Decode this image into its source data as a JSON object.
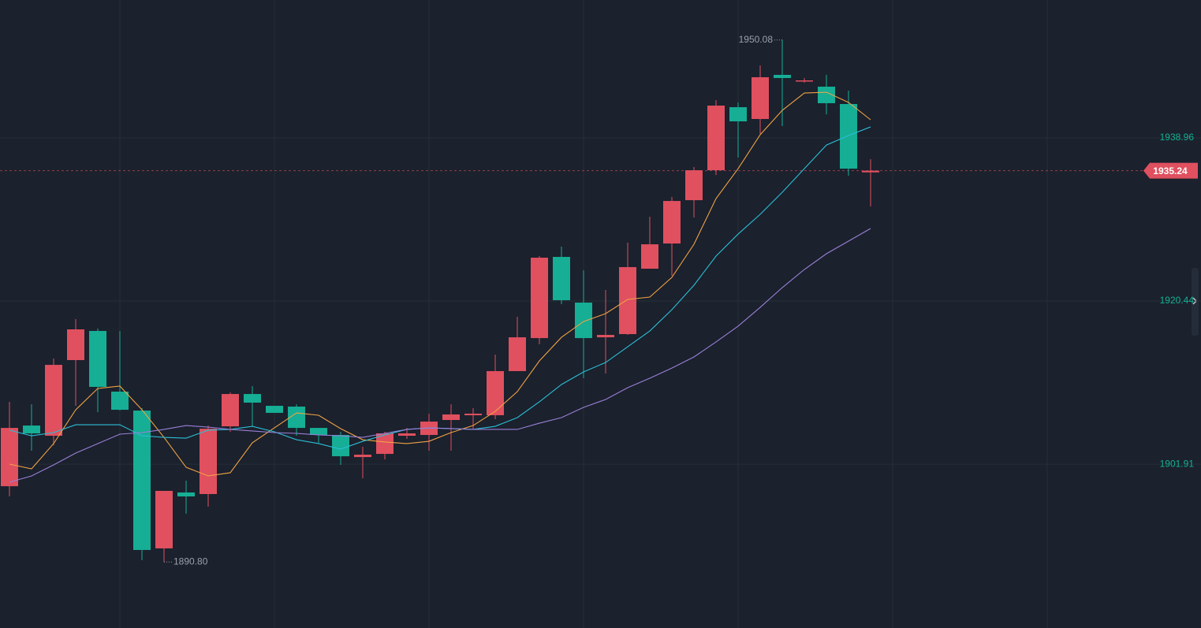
{
  "chart_data": {
    "type": "candlestick",
    "open": [
      1899.41,
      1906.3,
      1905.14,
      1913.73,
      1917.04,
      1910.15,
      1908.0,
      1892.35,
      1898.7,
      1898.52,
      1906.21,
      1909.88,
      1908.54,
      1908.45,
      1906.03,
      1905.23,
      1902.72,
      1903.08,
      1905.14,
      1905.23,
      1906.93,
      1907.47,
      1907.47,
      1912.48,
      1916.23,
      1925.45,
      1920.26,
      1916.32,
      1916.68,
      1924.11,
      1926.97,
      1931.89,
      1935.29,
      1942.45,
      1941.11,
      1946.12,
      1945.4,
      1944.78,
      1942.81,
      1935.05
    ],
    "high": [
      1908.99,
      1908.72,
      1913.91,
      1918.38,
      1917.31,
      1917.04,
      1908.27,
      1898.88,
      1900.04,
      1906.3,
      1910.06,
      1910.78,
      1908.54,
      1908.72,
      1906.03,
      1905.59,
      1903.89,
      1905.59,
      1906.03,
      1907.65,
      1908.72,
      1908.27,
      1914.36,
      1918.65,
      1925.54,
      1926.61,
      1923.93,
      1921.69,
      1927.06,
      1930.01,
      1932.25,
      1935.65,
      1943.25,
      1942.99,
      1947.19,
      1950.08,
      1945.76,
      1946.12,
      1944.33,
      1936.54
    ],
    "low": [
      1898.25,
      1903.44,
      1904.07,
      1908.54,
      1907.82,
      1908.0,
      1891.0,
      1890.8,
      1896.28,
      1897.09,
      1905.59,
      1906.21,
      1907.74,
      1905.14,
      1904.34,
      1901.83,
      1900.31,
      1902.45,
      1904.78,
      1903.44,
      1903.44,
      1905.85,
      1907.02,
      1912.48,
      1915.52,
      1920.08,
      1911.67,
      1912.21,
      1916.59,
      1924.11,
      1923.3,
      1929.92,
      1934.75,
      1936.72,
      1939.41,
      1940.3,
      1945.22,
      1941.64,
      1934.67,
      1931.18
    ],
    "close": [
      1906.03,
      1905.41,
      1913.19,
      1917.22,
      1910.69,
      1908.09,
      1892.17,
      1898.88,
      1898.25,
      1905.94,
      1909.88,
      1908.9,
      1907.74,
      1906.03,
      1905.23,
      1902.81,
      1902.99,
      1905.41,
      1905.41,
      1906.75,
      1907.56,
      1907.65,
      1912.48,
      1916.32,
      1925.36,
      1920.53,
      1916.23,
      1916.59,
      1924.29,
      1926.88,
      1931.8,
      1935.29,
      1942.63,
      1940.84,
      1945.85,
      1945.76,
      1945.49,
      1942.9,
      1935.47,
      1935.24
    ],
    "up_color": "#e0505f",
    "down_color": "#16ae95",
    "moving_averages": [
      {
        "color": "#f0a244",
        "values": [
          1901.92,
          1901.38,
          1904.25,
          1908.09,
          1910.51,
          1910.78,
          1908.09,
          1904.96,
          1901.56,
          1900.58,
          1900.94,
          1904.34,
          1906.04,
          1907.73,
          1907.47,
          1905.95,
          1904.69,
          1904.43,
          1904.25,
          1904.51,
          1905.5,
          1906.3,
          1907.91,
          1910.15,
          1913.64,
          1916.32,
          1918.11,
          1919.01,
          1920.62,
          1920.89,
          1923.12,
          1926.88,
          1932.07,
          1935.47,
          1939.32,
          1942.09,
          1944.06,
          1944.15,
          1942.99,
          1941.02
        ]
      },
      {
        "color": "#2bbfd6",
        "values": [
          1905.77,
          1905.14,
          1905.5,
          1906.39,
          1906.39,
          1906.39,
          1905.14,
          1904.96,
          1904.87,
          1905.77,
          1905.86,
          1906.21,
          1905.59,
          1904.69,
          1904.25,
          1903.62,
          1904.51,
          1905.23,
          1905.86,
          1906.03,
          1905.95,
          1905.86,
          1906.21,
          1907.2,
          1908.99,
          1910.96,
          1912.39,
          1913.46,
          1915.25,
          1917.04,
          1919.46,
          1922.23,
          1925.54,
          1928.04,
          1930.28,
          1932.79,
          1935.47,
          1938.15,
          1939.23,
          1940.21
        ]
      },
      {
        "color": "#9a80d8",
        "values": [
          1899.86,
          1900.58,
          1901.83,
          1903.17,
          1904.25,
          1905.32,
          1905.5,
          1905.86,
          1906.3,
          1906.12,
          1905.86,
          1905.68,
          1905.5,
          1905.41,
          1905.23,
          1905.14,
          1904.96,
          1905.41,
          1905.86,
          1906.03,
          1905.95,
          1905.86,
          1905.86,
          1905.86,
          1906.57,
          1907.2,
          1908.36,
          1909.26,
          1910.6,
          1911.67,
          1912.83,
          1914.09,
          1915.79,
          1917.58,
          1919.72,
          1921.96,
          1924.02,
          1925.81,
          1927.24,
          1928.67
        ]
      }
    ],
    "high_annotation": {
      "value": 1950.08,
      "index": 35
    },
    "low_annotation": {
      "value": 1890.8,
      "label": "1890.80",
      "index": 7
    },
    "last_price": 1935.24,
    "ylim": [
      1883.31,
      1954.62
    ],
    "yticks": [
      1901.91,
      1920.44,
      1938.96
    ],
    "grid": true
  }
}
